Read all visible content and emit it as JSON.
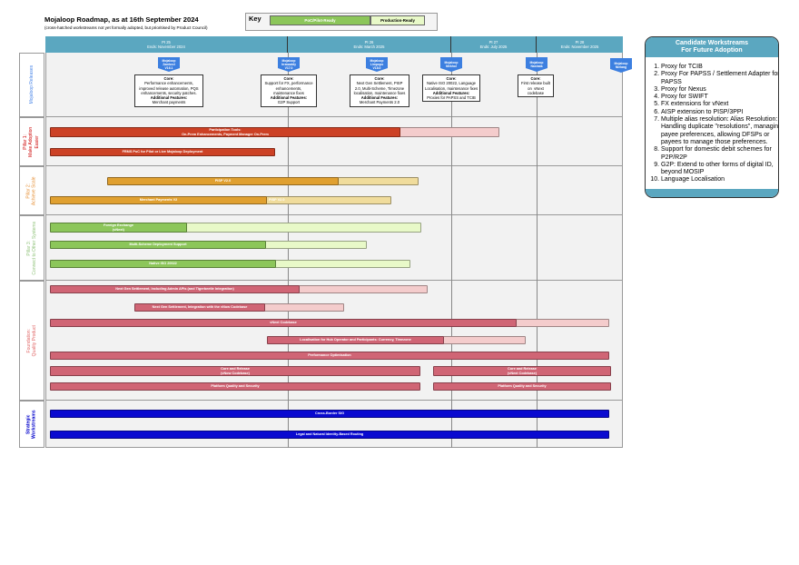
{
  "header": {
    "title": "Mojaloop Roadmap, as at 16th September 2024",
    "subtitle": "(cross-hatched workstreams not yet formally adopted, but prioritised by Product Council)"
  },
  "key": {
    "label": "Key",
    "items": [
      {
        "label": "PoC/Pilot-Ready",
        "color": "#8cc65a"
      },
      {
        "label": "Production-Ready",
        "color": "#e8f9c8"
      }
    ]
  },
  "pis": [
    {
      "name": "PI 25",
      "ends": "Ends: November 2024"
    },
    {
      "name": "PI 26",
      "ends": "Ends: March 2025"
    },
    {
      "name": "PI 27",
      "ends": "Ends: July 2025"
    },
    {
      "name": "PI 28",
      "ends": "Ends: November 2025"
    }
  ],
  "lanes": [
    {
      "label": "Mojaloop Releases",
      "color": "#4a86e8"
    },
    {
      "label": "Pillar 1:\nMake Adoption\nEasier",
      "color": "#cc0000"
    },
    {
      "label": "Pillar 2:\nAchieve Scale",
      "color": "#e69138"
    },
    {
      "label": "Pillar 3:\nConnect to Other Systems",
      "color": "#93c47d"
    },
    {
      "label": "Foundation:\nQuality Product",
      "color": "#e06666"
    },
    {
      "label": "Strategic\nWorkstreams",
      "color": "#0000cc"
    }
  ],
  "releases": [
    {
      "badge": "Mojaloop\nZambezi\nV16.1",
      "core_label": "Core:",
      "core": "Performance enhancements,\nimproved release automation, PQS\nenhancements, security patches.",
      "add_label": "Additional Features:",
      "add": "Merchant payments"
    },
    {
      "badge": "Mojaloop\nIrrawaddy\nV17.0",
      "core_label": "Core:",
      "core": "Support for FX, performance\nenhancements,\nmaintenance fixes",
      "add_label": "Additional Features:",
      "add": "G2P Support"
    },
    {
      "badge": "Mojaloop\nLimpopo\nV18.0",
      "core_label": "Core:",
      "core": "Next Gen Settlement, PISP\n2.0, Multi-Scheme, Timezone\nlocalisation, maintenance fixes",
      "add_label": "Additional Features:",
      "add": "Merchant Payments 2.0"
    },
    {
      "badge": "Mojaloop\nMekhol",
      "core_label": "Core:",
      "core": "Native ISO 20022, Language\nLocalisation, maintenance fixes",
      "add_label": "Additional Features:",
      "add": "Proxies for PAPSS and TCIB"
    },
    {
      "badge": "Mojaloop\nNashala",
      "core_label": "Core:",
      "core": "First release built\non  vNext\ncodebase",
      "add_label": "",
      "add": ""
    },
    {
      "badge": "Mojaloop\nNielang",
      "core_label": "",
      "core": "",
      "add_label": "",
      "add": ""
    }
  ],
  "bars": [
    {
      "label": "Participation Tools:\nOn-Prem Enhancements, Payment Manager On-Prem",
      "color": "#cc4125",
      "ghost": "#f4cccc"
    },
    {
      "label": "FRMS PoC for Pilot or Live Mojaloop Deployment",
      "color": "#cc4125"
    },
    {
      "label": "PISP V2.0",
      "color": "#e0a030",
      "ghost": "#f0dc9c"
    },
    {
      "label": "Merchant Payments V2",
      "label2": "PISP V2.0",
      "color": "#e0a030",
      "ghost": "#f0dc9c"
    },
    {
      "label": "Foreign Exchange\n(vNext)",
      "color": "#8cc65a",
      "ghost": "#e8f9c8"
    },
    {
      "label": "Multi-Scheme Deployment Support",
      "color": "#8cc65a",
      "ghost": "#e8f9c8"
    },
    {
      "label": "Native ISO 20022",
      "color": "#8cc65a",
      "ghost": "#e8f9c8"
    },
    {
      "label": "Next Gen Settlement, Including Admin APIs (and Tigerbeetle Integration)",
      "color": "#d06575",
      "ghost": "#f4cccc"
    },
    {
      "label": "Next Gen Settlement, Integration with the vNow Codebase",
      "color": "#d06575",
      "ghost": "#f4cccc"
    },
    {
      "label": "vNext Codebase",
      "color": "#d06575",
      "ghost": "#f4cccc"
    },
    {
      "label": "Localisation for Hub Operator and Participants: Currency, Timezone",
      "color": "#d06575",
      "ghost": "#f4cccc"
    },
    {
      "label": "Performance Optimisation",
      "color": "#d06575"
    },
    {
      "label": "Core and Release\n(vNow Codebase)",
      "color": "#d06575"
    },
    {
      "label": "Core and Release\n(vNext Codebase)",
      "color": "#d06575"
    },
    {
      "label": "Platform Quality and Security",
      "color": "#d06575"
    },
    {
      "label": "Platform Quality and Security",
      "color": "#d06575"
    },
    {
      "label": "Cross-Border SIG",
      "color": "#0a0ad0"
    },
    {
      "label": "Legal and Natural Identity-Based Routing",
      "color": "#0a0ad0"
    }
  ],
  "candidates": {
    "title": "Candidate Workstreams\nFor Future Adoption",
    "items": [
      "Proxy for TCIB",
      "Proxy For PAPSS / Settlement Adapter for PAPSS",
      "Proxy for Nexus",
      "Proxy for SWIFT",
      "FX extensions for vNext",
      "AISP extension to PISP/3PPI",
      "Multiple alias resolution: Alias Resolution: Handling duplicate \"resolutions\", managing payee preferences, allowing DFSPs or payees to manage those preferences.",
      "Support for domestic debit schemes for P2P/R2P",
      "G2P: Extend to other forms of digital ID, beyond MOSIP",
      "Language Localisation"
    ]
  }
}
